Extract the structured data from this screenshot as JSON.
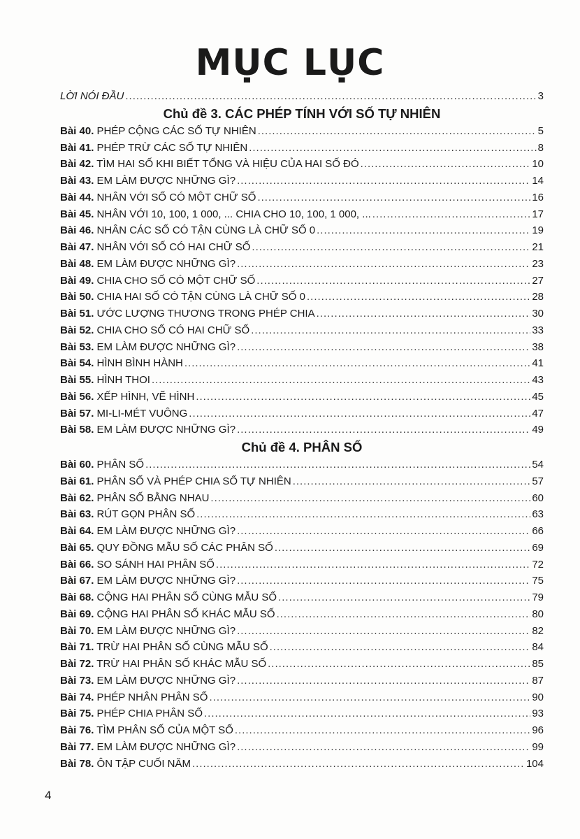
{
  "title": "MỤC LỤC",
  "preface": {
    "label": "LỜI NÓI ĐẦU",
    "page": "3"
  },
  "sections": [
    {
      "heading": "Chủ đề 3. CÁC PHÉP TÍNH VỚI SỐ TỰ NHIÊN",
      "items": [
        {
          "num": "Bài 40.",
          "label": "PHÉP CỘNG CÁC SỐ TỰ NHIÊN",
          "page": "5"
        },
        {
          "num": "Bài 41.",
          "label": "PHÉP TRỪ CÁC SỐ TỰ NHIÊN",
          "page": "8"
        },
        {
          "num": "Bài 42.",
          "label": "TÌM HAI SỐ KHI BIẾT TỔNG VÀ HIỆU CỦA HAI SỐ ĐÓ",
          "page": "10"
        },
        {
          "num": "Bài 43.",
          "label": "EM LÀM ĐƯỢC NHỮNG GÌ?",
          "page": "14"
        },
        {
          "num": "Bài 44.",
          "label": "NHÂN VỚI SỐ CÓ MỘT CHỮ SỐ",
          "page": "16"
        },
        {
          "num": "Bài 45.",
          "label": "NHÂN VỚI 10, 100, 1 000, ... CHIA CHO 10, 100, 1 000, ...",
          "page": "17"
        },
        {
          "num": "Bài 46.",
          "label": "NHÂN CÁC SỐ CÓ TẬN CÙNG LÀ CHỮ SỐ 0",
          "page": "19"
        },
        {
          "num": "Bài 47.",
          "label": "NHÂN VỚI SỐ CÓ HAI CHỮ SỐ",
          "page": "21"
        },
        {
          "num": "Bài 48.",
          "label": "EM LÀM ĐƯỢC NHỮNG GÌ?",
          "page": "23"
        },
        {
          "num": "Bài 49.",
          "label": "CHIA CHO SỐ CÓ MỘT CHỮ SỐ",
          "page": "27"
        },
        {
          "num": "Bài 50.",
          "label": "CHIA HAI SỐ CÓ TẬN CÙNG LÀ CHỮ SỐ 0",
          "page": "28"
        },
        {
          "num": "Bài 51.",
          "label": "ƯỚC LƯỢNG THƯƠNG TRONG PHÉP CHIA",
          "page": "30"
        },
        {
          "num": "Bài 52.",
          "label": "CHIA CHO SỐ CÓ HAI CHỮ SỐ",
          "page": "33"
        },
        {
          "num": "Bài 53.",
          "label": "EM LÀM ĐƯỢC NHỮNG GÌ?",
          "page": "38"
        },
        {
          "num": "Bài 54.",
          "label": "HÌNH BÌNH HÀNH",
          "page": "41"
        },
        {
          "num": "Bài 55.",
          "label": "HÌNH THOI",
          "page": "43"
        },
        {
          "num": "Bài 56.",
          "label": "XẾP HÌNH, VẼ HÌNH",
          "page": "45"
        },
        {
          "num": "Bài 57.",
          "label": "MI-LI-MÉT VUÔNG",
          "page": "47"
        },
        {
          "num": "Bài 58.",
          "label": "EM LÀM ĐƯỢC NHỮNG GÌ?",
          "page": "49"
        }
      ]
    },
    {
      "heading": "Chủ đề 4. PHÂN SỐ",
      "items": [
        {
          "num": "Bài 60.",
          "label": "PHÂN SỐ",
          "page": "54"
        },
        {
          "num": "Bài 61.",
          "label": "PHÂN SỐ VÀ PHÉP CHIA SỐ TỰ NHIÊN",
          "page": "57"
        },
        {
          "num": "Bài 62.",
          "label": "PHÂN SỐ BẰNG NHAU",
          "page": "60"
        },
        {
          "num": "Bài 63.",
          "label": "RÚT GỌN PHÂN SỐ",
          "page": "63"
        },
        {
          "num": "Bài 64.",
          "label": "EM LÀM ĐƯỢC NHỮNG GÌ?",
          "page": "66"
        },
        {
          "num": "Bài 65.",
          "label": "QUY ĐỒNG MẪU SỐ CÁC PHÂN SỐ",
          "page": "69"
        },
        {
          "num": "Bài 66.",
          "label": "SO SÁNH HAI PHÂN SỐ",
          "page": "72"
        },
        {
          "num": "Bài 67.",
          "label": "EM LÀM ĐƯỢC NHỮNG GÌ?",
          "page": "75"
        },
        {
          "num": "Bài 68.",
          "label": "CỘNG HAI PHÂN SỐ CÙNG MẪU SỐ",
          "page": "79"
        },
        {
          "num": "Bài 69.",
          "label": "CỘNG HAI PHÂN SỐ KHÁC MẪU SỐ",
          "page": "80"
        },
        {
          "num": "Bài 70.",
          "label": "EM LÀM ĐƯỢC NHỮNG GÌ?",
          "page": "82"
        },
        {
          "num": "Bài 71.",
          "label": "TRỪ HAI PHÂN SỐ CÙNG MẪU SỐ",
          "page": "84"
        },
        {
          "num": "Bài 72.",
          "label": "TRỪ HAI PHÂN SỐ KHÁC MẪU SỐ",
          "page": "85"
        },
        {
          "num": "Bài 73.",
          "label": "EM LÀM ĐƯỢC NHỮNG GÌ?",
          "page": "87"
        },
        {
          "num": "Bài 74.",
          "label": "PHÉP NHÂN PHÂN SỐ",
          "page": "90"
        },
        {
          "num": "Bài 75.",
          "label": "PHÉP CHIA PHÂN SỐ",
          "page": "93"
        },
        {
          "num": "Bài 76.",
          "label": "TÌM PHÂN SỐ CỦA MỘT SỐ",
          "page": "96"
        },
        {
          "num": "Bài 77.",
          "label": "EM LÀM ĐƯỢC NHỮNG GÌ?",
          "page": "99"
        },
        {
          "num": "Bài 78.",
          "label": "ÔN TẬP CUỐI NĂM",
          "page": "104"
        }
      ]
    }
  ],
  "page_number": "4"
}
